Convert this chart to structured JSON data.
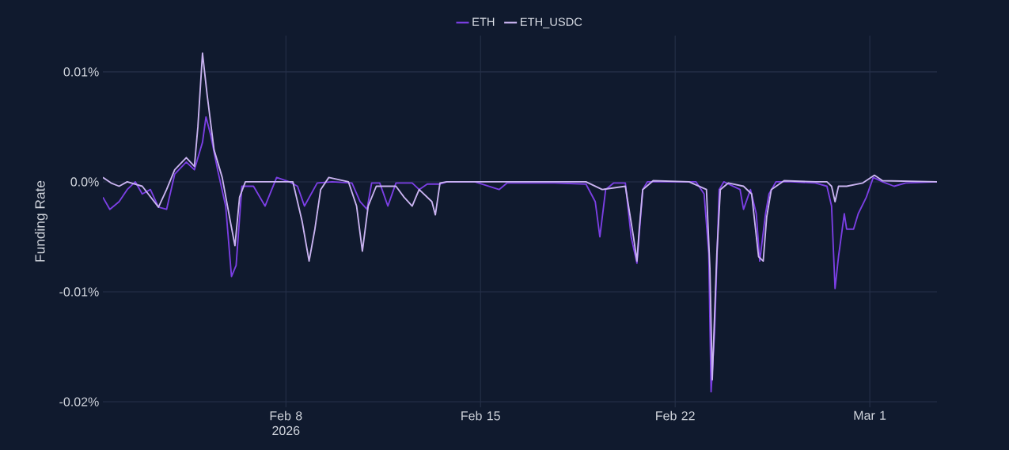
{
  "chart_data": {
    "type": "line",
    "ylabel": "Funding Rate",
    "grid": true,
    "legend": "top",
    "xlim": [
      "2026-02-01T10:00",
      "2026-03-03T10:00"
    ],
    "xticks": [
      {
        "value": "2026-02-08",
        "label": "Feb 8 2026"
      },
      {
        "value": "2026-02-15",
        "label": "Feb 15"
      },
      {
        "value": "2026-02-22",
        "label": "Feb 22"
      },
      {
        "value": "2026-03-01",
        "label": "Mar 1"
      }
    ],
    "ylim": [
      -0.0205,
      0.0133
    ],
    "yticks": [
      {
        "value": 0.01,
        "label": "0.01%"
      },
      {
        "value": 0,
        "label": "0.0%"
      },
      {
        "value": -0.01,
        "label": "-0.01%"
      },
      {
        "value": -0.02,
        "label": "-0.02%"
      }
    ],
    "series": [
      {
        "name": "ETH",
        "color": "#7b3fe4",
        "x": [
          "2026-02-01T10:00",
          "2026-02-01T16:00",
          "2026-02-02T00:00",
          "2026-02-02T07:00",
          "2026-02-02T14:00",
          "2026-02-02T20:00",
          "2026-02-03T03:00",
          "2026-02-03T10:00",
          "2026-02-03T17:00",
          "2026-02-04T00:00",
          "2026-02-04T10:00",
          "2026-02-04T17:00",
          "2026-02-05T00:00",
          "2026-02-05T03:00",
          "2026-02-05T07:00",
          "2026-02-05T13:00",
          "2026-02-05T20:00",
          "2026-02-06T01:00",
          "2026-02-06T05:00",
          "2026-02-06T10:00",
          "2026-02-06T20:00",
          "2026-02-07T06:00",
          "2026-02-07T16:00",
          "2026-02-08T03:00",
          "2026-02-08T10:00",
          "2026-02-08T16:00",
          "2026-02-09T03:00",
          "2026-02-09T16:00",
          "2026-02-10T09:00",
          "2026-02-10T16:00",
          "2026-02-10T22:00",
          "2026-02-11T02:00",
          "2026-02-11T09:00",
          "2026-02-11T16:00",
          "2026-02-11T23:00",
          "2026-02-12T13:00",
          "2026-02-12T19:00",
          "2026-02-13T02:00",
          "2026-02-13T13:00",
          "2026-02-13T19:00",
          "2026-02-14T19:00",
          "2026-02-15T16:00",
          "2026-02-15T23:00",
          "2026-02-17T16:00",
          "2026-02-18T19:00",
          "2026-02-19T03:00",
          "2026-02-19T07:00",
          "2026-02-19T12:00",
          "2026-02-19T19:00",
          "2026-02-20T05:00",
          "2026-02-20T10:00",
          "2026-02-20T15:00",
          "2026-02-20T20:00",
          "2026-02-21T00:00",
          "2026-02-22T18:00",
          "2026-02-23T01:00",
          "2026-02-23T05:00",
          "2026-02-23T07:00",
          "2026-02-23T10:00",
          "2026-02-23T14:00",
          "2026-02-23T18:00",
          "2026-02-24T08:00",
          "2026-02-24T11:00",
          "2026-02-24T17:00",
          "2026-02-24T22:00",
          "2026-02-25T01:00",
          "2026-02-25T06:00",
          "2026-02-25T09:00",
          "2026-02-25T15:00",
          "2026-02-26T04:00",
          "2026-02-27T01:00",
          "2026-02-27T11:00",
          "2026-02-27T15:00",
          "2026-02-27T18:00",
          "2026-02-27T21:00",
          "2026-02-28T02:00",
          "2026-02-28T04:00",
          "2026-02-28T10:00",
          "2026-02-28T14:00",
          "2026-02-28T21:00",
          "2026-03-01T03:00",
          "2026-03-01T11:00",
          "2026-03-01T21:00",
          "2026-03-02T07:00",
          "2026-03-03T10:00"
        ],
        "values": [
          -0.0014,
          -0.0025,
          -0.0018,
          -0.0007,
          0.0,
          -0.0011,
          -0.0007,
          -0.0023,
          -0.0025,
          0.0007,
          0.0018,
          0.0011,
          0.0036,
          0.0059,
          0.0043,
          0.0011,
          -0.0022,
          -0.0086,
          -0.0076,
          -0.0004,
          -0.0004,
          -0.0022,
          0.0004,
          0.0,
          -0.0004,
          -0.0022,
          -0.0001,
          0.0,
          -0.0001,
          -0.0018,
          -0.0025,
          -0.0001,
          -0.0001,
          -0.0022,
          -0.0001,
          -0.0001,
          -0.0007,
          -0.0002,
          -0.0002,
          0.0,
          0.0,
          -0.0007,
          -0.0001,
          -0.0001,
          -0.0002,
          -0.0018,
          -0.005,
          -0.0007,
          -0.0001,
          -0.0001,
          -0.005,
          -0.0074,
          -0.0007,
          0.0,
          0.0,
          -0.0011,
          -0.0065,
          -0.0191,
          -0.0137,
          -0.0007,
          0.0,
          -0.0007,
          -0.0025,
          -0.0007,
          -0.0029,
          -0.0072,
          -0.0029,
          -0.0011,
          0.0,
          0.0,
          -0.0001,
          -0.0004,
          -0.0022,
          -0.0097,
          -0.0068,
          -0.0029,
          -0.0043,
          -0.0043,
          -0.0029,
          -0.0014,
          0.0004,
          0.0,
          -0.0004,
          -0.0001,
          0.0
        ]
      },
      {
        "name": "ETH_USDC",
        "color": "#c9b3f0",
        "x": [
          "2026-02-01T10:00",
          "2026-02-01T17:00",
          "2026-02-02T00:00",
          "2026-02-02T07:00",
          "2026-02-02T20:00",
          "2026-02-03T10:00",
          "2026-02-03T17:00",
          "2026-02-04T00:00",
          "2026-02-04T10:00",
          "2026-02-04T17:00",
          "2026-02-04T20:00",
          "2026-02-05T00:00",
          "2026-02-05T04:00",
          "2026-02-05T10:00",
          "2026-02-05T17:00",
          "2026-02-06T00:00",
          "2026-02-06T04:00",
          "2026-02-06T08:00",
          "2026-02-06T13:00",
          "2026-02-07T16:00",
          "2026-02-08T06:00",
          "2026-02-08T14:00",
          "2026-02-08T20:00",
          "2026-02-09T01:00",
          "2026-02-09T06:00",
          "2026-02-09T13:00",
          "2026-02-10T06:00",
          "2026-02-10T13:00",
          "2026-02-10T18:00",
          "2026-02-10T23:00",
          "2026-02-11T06:00",
          "2026-02-11T23:00",
          "2026-02-12T06:00",
          "2026-02-12T13:00",
          "2026-02-12T19:00",
          "2026-02-13T06:00",
          "2026-02-13T09:00",
          "2026-02-13T13:00",
          "2026-02-13T19:00",
          "2026-02-15T23:00",
          "2026-02-17T16:00",
          "2026-02-18T19:00",
          "2026-02-19T09:00",
          "2026-02-20T05:00",
          "2026-02-20T12:00",
          "2026-02-20T15:00",
          "2026-02-20T17:00",
          "2026-02-20T20:00",
          "2026-02-21T05:00",
          "2026-02-22T12:00",
          "2026-02-23T03:00",
          "2026-02-23T06:00",
          "2026-02-23T08:00",
          "2026-02-23T12:00",
          "2026-02-23T15:00",
          "2026-02-23T22:00",
          "2026-02-24T11:00",
          "2026-02-24T18:00",
          "2026-02-25T00:00",
          "2026-02-25T04:00",
          "2026-02-25T07:00",
          "2026-02-25T11:00",
          "2026-02-25T22:00",
          "2026-02-27T01:00",
          "2026-02-27T11:00",
          "2026-02-27T15:00",
          "2026-02-27T18:00",
          "2026-02-27T21:00",
          "2026-02-28T04:00",
          "2026-02-28T18:00",
          "2026-03-01T04:00",
          "2026-03-01T11:00",
          "2026-03-03T10:00"
        ],
        "values": [
          0.0004,
          -0.0001,
          -0.0004,
          0.0,
          -0.0004,
          -0.0023,
          -0.0007,
          0.0011,
          0.0022,
          0.0014,
          0.005,
          0.0117,
          0.0079,
          0.0029,
          0.0004,
          -0.0036,
          -0.0058,
          -0.0014,
          0.0,
          0.0,
          0.0,
          -0.0036,
          -0.0072,
          -0.0043,
          -0.0007,
          0.0004,
          0.0,
          -0.0022,
          -0.0063,
          -0.0022,
          -0.0004,
          -0.0004,
          -0.0014,
          -0.0022,
          -0.0007,
          -0.0018,
          -0.003,
          -0.0001,
          0.0,
          0.0,
          0.0,
          0.0,
          -0.0007,
          -0.0004,
          -0.005,
          -0.0072,
          -0.0043,
          -0.0007,
          0.0001,
          0.0,
          -0.0007,
          -0.0079,
          -0.018,
          -0.0065,
          -0.0007,
          -0.0001,
          -0.0004,
          -0.0011,
          -0.0068,
          -0.0072,
          -0.0032,
          -0.0007,
          0.0001,
          0.0,
          0.0,
          -0.0004,
          -0.0018,
          -0.0004,
          -0.0004,
          -0.0001,
          0.0006,
          0.0001,
          0.0
        ]
      }
    ]
  }
}
